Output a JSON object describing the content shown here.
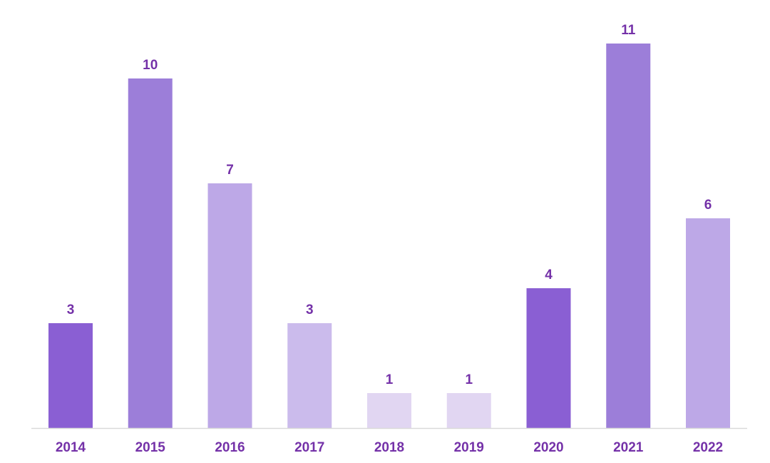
{
  "chart_data": {
    "type": "bar",
    "categories": [
      "2014",
      "2015",
      "2016",
      "2017",
      "2018",
      "2019",
      "2020",
      "2021",
      "2022"
    ],
    "values": [
      3,
      10,
      7,
      3,
      1,
      1,
      4,
      11,
      6
    ],
    "bar_colors": [
      "#8a5fd3",
      "#9c7ed9",
      "#bda8e7",
      "#cbbbec",
      "#e1d6f2",
      "#e1d6f2",
      "#8a5fd3",
      "#9c7ed9",
      "#bda8e7"
    ],
    "label_color": "#7431a8",
    "axis_color": "#d9d9d9",
    "title": "",
    "xlabel": "",
    "ylabel": "",
    "ylim": [
      0,
      11
    ],
    "grid": false,
    "legend": "none",
    "data_labels": true
  }
}
